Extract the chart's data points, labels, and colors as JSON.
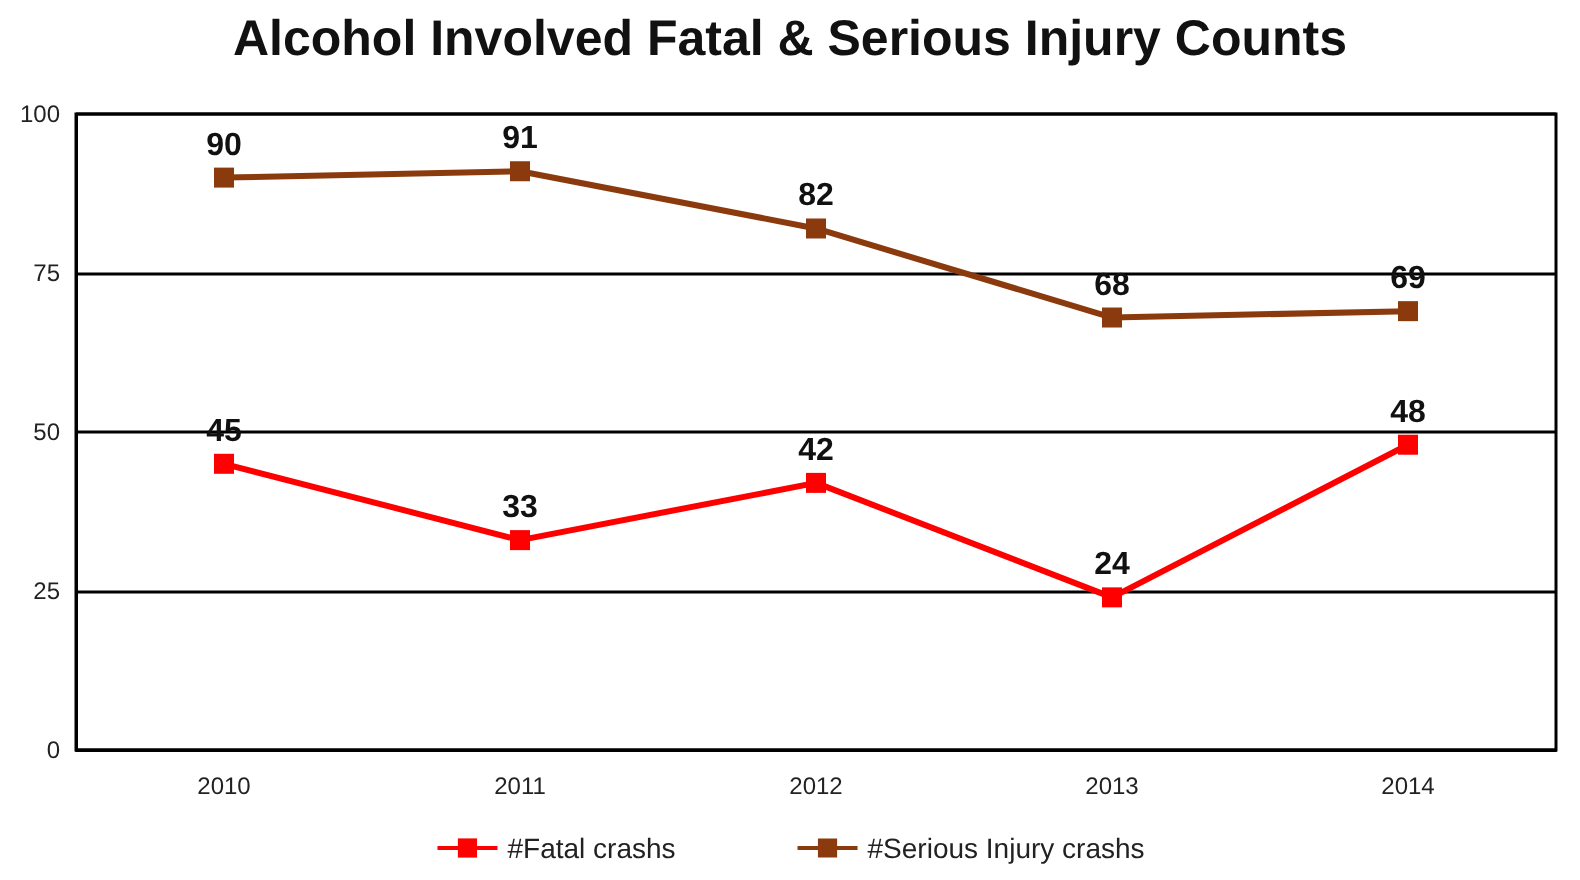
{
  "chart_data": {
    "type": "line",
    "title": "Alcohol Involved Fatal & Serious Injury Counts",
    "categories": [
      "2010",
      "2011",
      "2012",
      "2013",
      "2014"
    ],
    "series": [
      {
        "name": "#Fatal crashs",
        "color": "#ff0000",
        "values": [
          45,
          33,
          42,
          24,
          48
        ]
      },
      {
        "name": "#Serious Injury crashs",
        "color": "#8b3a0e",
        "values": [
          90,
          91,
          82,
          68,
          69
        ]
      }
    ],
    "ylim": [
      0,
      100
    ],
    "yticks": [
      0,
      25,
      50,
      75,
      100
    ],
    "grid": "y",
    "legend": "bottom",
    "marker": "square",
    "data_labels": true
  }
}
